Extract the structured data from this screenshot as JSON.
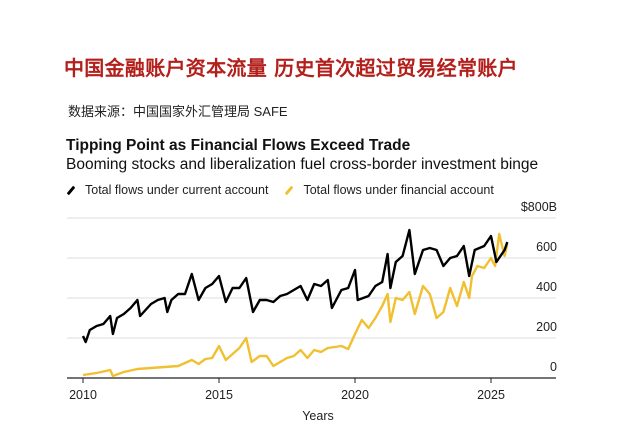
{
  "headline": "中国金融账户资本流量  历史首次超过贸易经常账户",
  "source": "数据来源：中国国家外汇管理局 SAFE",
  "chart_data": {
    "type": "line",
    "title": "Tipping Point as Financial Flows Exceed Trade",
    "subtitle": "Booming stocks and liberalization fuel cross-border investment binge",
    "xlabel": "Years",
    "ylabel": "",
    "xlim": [
      2009.9,
      2027.2
    ],
    "ylim": [
      0,
      800
    ],
    "x_ticks": [
      "2010",
      "2015",
      "2020",
      "2025"
    ],
    "y_ticks": [
      "0",
      "200",
      "400",
      "600",
      "$800B"
    ],
    "y_tick_values": [
      0,
      200,
      400,
      600,
      800
    ],
    "x_tick_values": [
      2010,
      2015,
      2020,
      2025
    ],
    "grid": true,
    "legend_placement": "top-left",
    "series": [
      {
        "name": "Total flows under current account",
        "color": "#000000",
        "x": [
          2010.0,
          2010.1,
          2010.25,
          2010.5,
          2010.75,
          2011.0,
          2011.1,
          2011.25,
          2011.5,
          2011.75,
          2012.0,
          2012.1,
          2012.5,
          2012.75,
          2013.0,
          2013.1,
          2013.25,
          2013.5,
          2013.75,
          2014.0,
          2014.25,
          2014.5,
          2014.75,
          2015.0,
          2015.25,
          2015.5,
          2015.75,
          2016.0,
          2016.25,
          2016.5,
          2016.75,
          2017.0,
          2017.25,
          2017.5,
          2017.75,
          2018.0,
          2018.25,
          2018.5,
          2018.75,
          2019.0,
          2019.15,
          2019.5,
          2019.75,
          2020.0,
          2020.1,
          2020.5,
          2020.75,
          2021.0,
          2021.2,
          2021.3,
          2021.5,
          2021.75,
          2022.0,
          2022.2,
          2022.5,
          2022.75,
          2023.0,
          2023.25,
          2023.5,
          2023.75,
          2024.0,
          2024.2,
          2024.4,
          2024.75,
          2025.0,
          2025.2,
          2025.5,
          2025.6
        ],
        "values": [
          210,
          180,
          240,
          260,
          270,
          310,
          220,
          300,
          320,
          350,
          390,
          310,
          370,
          390,
          400,
          330,
          390,
          420,
          420,
          520,
          390,
          450,
          470,
          510,
          380,
          450,
          450,
          500,
          330,
          390,
          390,
          380,
          410,
          420,
          440,
          460,
          390,
          470,
          460,
          490,
          350,
          440,
          450,
          540,
          390,
          410,
          460,
          480,
          620,
          450,
          580,
          610,
          740,
          520,
          640,
          650,
          640,
          560,
          600,
          610,
          660,
          510,
          640,
          660,
          710,
          580,
          640,
          680
        ]
      },
      {
        "name": "Total flows under financial account",
        "color": "#f0c030",
        "x": [
          2010.0,
          2010.5,
          2011.0,
          2011.1,
          2011.5,
          2012.0,
          2012.5,
          2013.0,
          2013.5,
          2014.0,
          2014.25,
          2014.5,
          2014.75,
          2015.0,
          2015.25,
          2015.5,
          2015.75,
          2016.0,
          2016.2,
          2016.5,
          2016.75,
          2017.0,
          2017.25,
          2017.5,
          2017.75,
          2018.0,
          2018.25,
          2018.5,
          2018.75,
          2019.0,
          2019.5,
          2019.75,
          2020.0,
          2020.25,
          2020.5,
          2020.75,
          2021.0,
          2021.2,
          2021.3,
          2021.5,
          2021.75,
          2022.0,
          2022.2,
          2022.5,
          2022.75,
          2023.0,
          2023.25,
          2023.5,
          2023.75,
          2024.0,
          2024.2,
          2024.3,
          2024.5,
          2024.75,
          2025.0,
          2025.15,
          2025.3,
          2025.5,
          2025.6
        ],
        "values": [
          15,
          25,
          40,
          10,
          30,
          45,
          50,
          55,
          60,
          90,
          70,
          95,
          100,
          160,
          90,
          120,
          150,
          200,
          80,
          110,
          110,
          60,
          80,
          100,
          110,
          140,
          100,
          140,
          130,
          150,
          160,
          145,
          220,
          290,
          250,
          300,
          360,
          420,
          280,
          400,
          390,
          430,
          320,
          460,
          420,
          300,
          330,
          450,
          360,
          480,
          400,
          510,
          560,
          550,
          600,
          560,
          720,
          610,
          670
        ]
      }
    ]
  }
}
